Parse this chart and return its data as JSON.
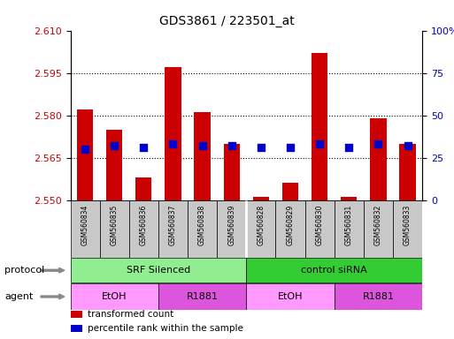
{
  "title": "GDS3861 / 223501_at",
  "samples": [
    "GSM560834",
    "GSM560835",
    "GSM560836",
    "GSM560837",
    "GSM560838",
    "GSM560839",
    "GSM560828",
    "GSM560829",
    "GSM560830",
    "GSM560831",
    "GSM560832",
    "GSM560833"
  ],
  "transformed_count": [
    2.582,
    2.575,
    2.558,
    2.597,
    2.581,
    2.57,
    2.551,
    2.556,
    2.602,
    2.551,
    2.579,
    2.57
  ],
  "percentile_rank": [
    30,
    32,
    31,
    33,
    32,
    32,
    31,
    31,
    33,
    31,
    33,
    32
  ],
  "y_min": 2.55,
  "y_max": 2.61,
  "y_ticks": [
    2.55,
    2.565,
    2.58,
    2.595,
    2.61
  ],
  "y_right_ticks": [
    0,
    25,
    50,
    75,
    100
  ],
  "protocol_groups": [
    {
      "label": "SRF Silenced",
      "start": 0,
      "end": 6,
      "color": "#90EE90"
    },
    {
      "label": "control siRNA",
      "start": 6,
      "end": 12,
      "color": "#33CC33"
    }
  ],
  "agent_groups": [
    {
      "label": "EtOH",
      "start": 0,
      "end": 3,
      "color": "#FF99FF"
    },
    {
      "label": "R1881",
      "start": 3,
      "end": 6,
      "color": "#DD55DD"
    },
    {
      "label": "EtOH",
      "start": 6,
      "end": 9,
      "color": "#FF99FF"
    },
    {
      "label": "R1881",
      "start": 9,
      "end": 12,
      "color": "#DD55DD"
    }
  ],
  "bar_color": "#CC0000",
  "dot_color": "#0000CC",
  "bar_width": 0.55,
  "dot_size": 28,
  "tick_label_color_left": "#CC0000",
  "tick_label_color_right": "#0000CC",
  "protocol_label": "protocol",
  "agent_label": "agent",
  "legend_items": [
    {
      "color": "#CC0000",
      "label": "transformed count"
    },
    {
      "color": "#0000CC",
      "label": "percentile rank within the sample"
    }
  ]
}
